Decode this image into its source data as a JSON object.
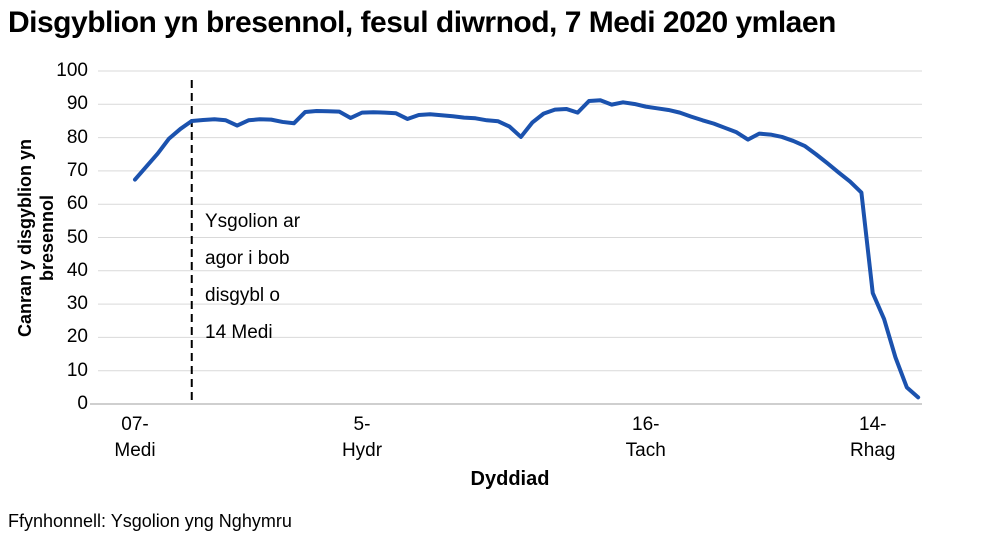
{
  "title": "Disgyblion yn bresennol, fesul diwrnod, 7 Medi 2020 ymlaen",
  "footer": "Ffynhonnell: Ysgolion yng Nghymru",
  "chart_data": {
    "type": "line",
    "title": "Disgyblion yn bresennol, fesul diwrnod, 7 Medi 2020 ymlaen",
    "xlabel": "Dyddiad",
    "ylabel": "Canran y disgyblion yn\nbresennol",
    "ylim": [
      0,
      100
    ],
    "yticks": [
      0,
      10,
      20,
      30,
      40,
      50,
      60,
      70,
      80,
      90,
      100
    ],
    "grid": "horizontal-only",
    "legend": "none",
    "line_color": "#1B52AE",
    "gridline_color": "#D9D9D9",
    "axis_color": "#BFBFBF",
    "annotation": {
      "text": "Ysgolion ar\nagor i bob\ndisgybl o\n14 Medi",
      "at_index": 5,
      "line_style": "dashed",
      "line_color": "#000000"
    },
    "xticks": [
      {
        "index": 0,
        "label": "07-\nMedi"
      },
      {
        "index": 20,
        "label": "5-\nHydr"
      },
      {
        "index": 45,
        "label": "16-\nTach"
      },
      {
        "index": 65,
        "label": "14-\nRhag"
      }
    ],
    "x": [
      "07-Medi",
      "08-Medi",
      "09-Medi",
      "10-Medi",
      "11-Medi",
      "14-Medi",
      "15-Medi",
      "16-Medi",
      "17-Medi",
      "18-Medi",
      "21-Medi",
      "22-Medi",
      "23-Medi",
      "24-Medi",
      "25-Medi",
      "28-Medi",
      "29-Medi",
      "30-Medi",
      "01-Hydr",
      "02-Hydr",
      "05-Hydr",
      "06-Hydr",
      "07-Hydr",
      "08-Hydr",
      "09-Hydr",
      "12-Hydr",
      "13-Hydr",
      "14-Hydr",
      "15-Hydr",
      "16-Hydr",
      "19-Hydr",
      "20-Hydr",
      "21-Hydr",
      "22-Hydr",
      "23-Hydr",
      "02-Tach",
      "03-Tach",
      "04-Tach",
      "05-Tach",
      "06-Tach",
      "09-Tach",
      "10-Tach",
      "11-Tach",
      "12-Tach",
      "13-Tach",
      "16-Tach",
      "17-Tach",
      "18-Tach",
      "19-Tach",
      "20-Tach",
      "23-Tach",
      "24-Tach",
      "25-Tach",
      "26-Tach",
      "27-Tach",
      "30-Tach",
      "01-Rhag",
      "02-Rhag",
      "03-Rhag",
      "04-Rhag",
      "07-Rhag",
      "08-Rhag",
      "09-Rhag",
      "10-Rhag",
      "11-Rhag",
      "14-Rhag",
      "15-Rhag",
      "16-Rhag",
      "17-Rhag",
      "18-Rhag"
    ],
    "y": [
      67.4,
      71.3,
      75.2,
      79.7,
      82.6,
      85.0,
      85.3,
      85.5,
      85.2,
      83.6,
      85.2,
      85.5,
      85.4,
      84.7,
      84.3,
      87.7,
      88.0,
      87.9,
      87.8,
      85.9,
      87.5,
      87.6,
      87.5,
      87.3,
      85.6,
      86.8,
      87.0,
      86.7,
      86.4,
      86.0,
      85.8,
      85.2,
      84.9,
      83.3,
      80.2,
      84.5,
      87.2,
      88.4,
      88.6,
      87.5,
      91.0,
      91.2,
      89.9,
      90.6,
      90.1,
      89.3,
      88.8,
      88.3,
      87.5,
      86.3,
      85.2,
      84.2,
      82.9,
      81.6,
      79.4,
      81.2,
      80.9,
      80.2,
      79.0,
      77.5,
      75.0,
      72.3,
      69.5,
      66.8,
      63.5,
      33.3,
      25.5,
      14.0,
      5.0,
      2.0
    ]
  }
}
